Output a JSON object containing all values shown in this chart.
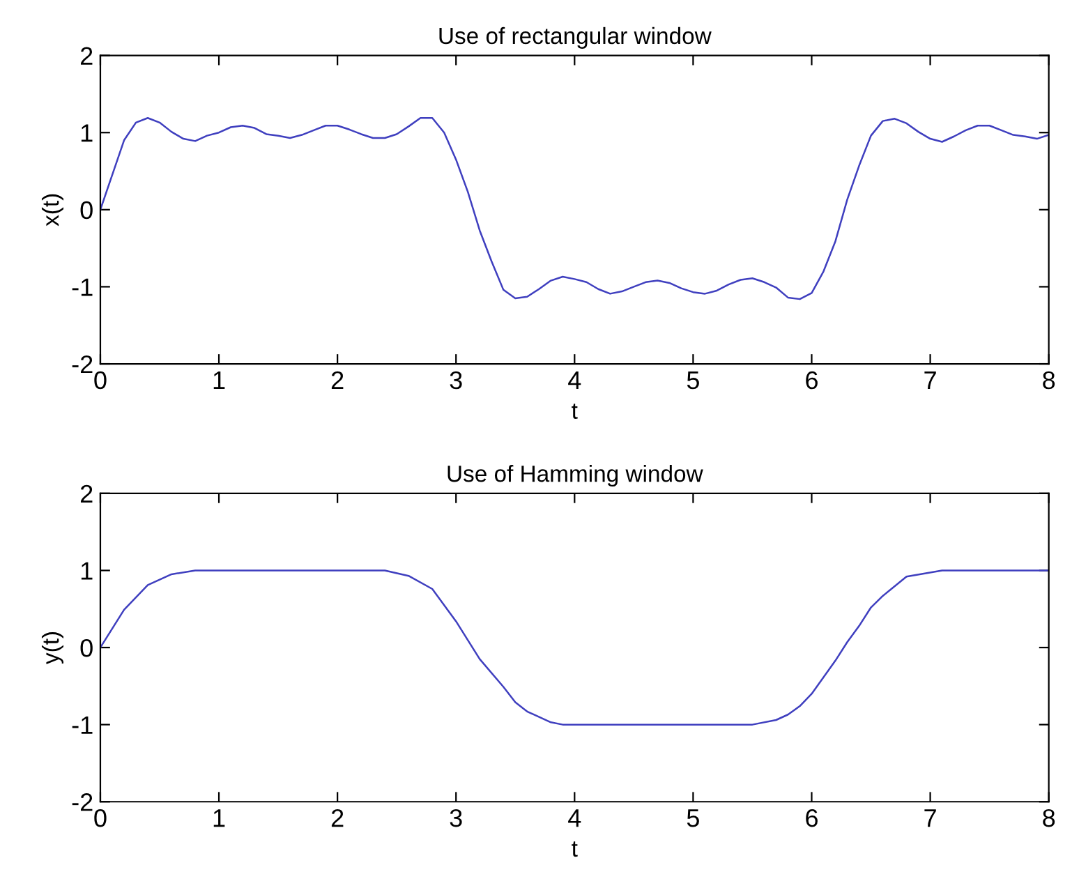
{
  "chart_data": [
    {
      "type": "line",
      "title": "Use of rectangular window",
      "xlabel": "t",
      "ylabel": "x(t)",
      "xlim": [
        0,
        8
      ],
      "ylim": [
        -2,
        2
      ],
      "xticks": [
        0,
        1,
        2,
        3,
        4,
        5,
        6,
        7,
        8
      ],
      "yticks": [
        -2,
        -1,
        0,
        1,
        2
      ],
      "grid": false,
      "legend": false,
      "x": [
        0,
        0.1,
        0.2,
        0.3,
        0.4,
        0.5,
        0.6,
        0.7,
        0.8,
        0.9,
        1.0,
        1.1,
        1.2,
        1.3,
        1.4,
        1.5,
        1.6,
        1.7,
        1.8,
        1.9,
        2.0,
        2.1,
        2.2,
        2.3,
        2.4,
        2.5,
        2.6,
        2.7,
        2.8,
        2.9,
        3.0,
        3.1,
        3.2,
        3.3,
        3.4,
        3.5,
        3.6,
        3.7,
        3.8,
        3.9,
        4.0,
        4.1,
        4.2,
        4.3,
        4.4,
        4.5,
        4.6,
        4.7,
        4.8,
        4.9,
        5.0,
        5.1,
        5.2,
        5.3,
        5.4,
        5.5,
        5.6,
        5.7,
        5.8,
        5.9,
        6.0,
        6.1,
        6.2,
        6.3,
        6.4,
        6.5,
        6.6,
        6.7,
        6.8,
        6.9,
        7.0,
        7.1,
        7.2,
        7.3,
        7.4,
        7.5,
        7.6,
        7.7,
        7.8,
        7.9,
        8.0
      ],
      "series": [
        {
          "color": "#3f3fbf",
          "values": [
            0,
            0.45,
            0.9,
            1.13,
            1.19,
            1.13,
            1.01,
            0.92,
            0.89,
            0.96,
            1.0,
            1.07,
            1.09,
            1.06,
            0.98,
            0.96,
            0.93,
            0.97,
            1.03,
            1.09,
            1.09,
            1.04,
            0.98,
            0.93,
            0.93,
            0.98,
            1.08,
            1.19,
            1.19,
            1.0,
            0.65,
            0.23,
            -0.27,
            -0.67,
            -1.04,
            -1.15,
            -1.13,
            -1.03,
            -0.92,
            -0.87,
            -0.9,
            -0.94,
            -1.03,
            -1.09,
            -1.06,
            -1.0,
            -0.94,
            -0.92,
            -0.95,
            -1.02,
            -1.07,
            -1.09,
            -1.05,
            -0.97,
            -0.91,
            -0.89,
            -0.94,
            -1.01,
            -1.14,
            -1.16,
            -1.08,
            -0.8,
            -0.41,
            0.13,
            0.57,
            0.96,
            1.15,
            1.18,
            1.12,
            1.01,
            0.92,
            0.88,
            0.95,
            1.03,
            1.09,
            1.09,
            1.03,
            0.97,
            0.95,
            0.92,
            0.97
          ]
        }
      ]
    },
    {
      "type": "line",
      "title": "Use of Hamming window",
      "xlabel": "t",
      "ylabel": "y(t)",
      "xlim": [
        0,
        8
      ],
      "ylim": [
        -2,
        2
      ],
      "xticks": [
        0,
        1,
        2,
        3,
        4,
        5,
        6,
        7,
        8
      ],
      "yticks": [
        -2,
        -1,
        0,
        1,
        2
      ],
      "grid": false,
      "legend": false,
      "x": [
        0,
        0.2,
        0.4,
        0.6,
        0.8,
        2.4,
        2.6,
        2.8,
        2.9,
        3.0,
        3.2,
        3.4,
        3.5,
        3.6,
        3.8,
        3.9,
        5.5,
        5.7,
        5.8,
        5.9,
        6.0,
        6.2,
        6.3,
        6.4,
        6.5,
        6.6,
        6.8,
        7.1,
        8.0
      ],
      "series": [
        {
          "color": "#3f3fbf",
          "values": [
            0,
            0.49,
            0.81,
            0.95,
            1.0,
            1.0,
            0.93,
            0.76,
            0.55,
            0.34,
            -0.15,
            -0.51,
            -0.71,
            -0.83,
            -0.97,
            -1.0,
            -1.0,
            -0.94,
            -0.87,
            -0.76,
            -0.6,
            -0.17,
            0.07,
            0.28,
            0.52,
            0.67,
            0.92,
            1.0,
            1.0
          ]
        }
      ]
    }
  ]
}
